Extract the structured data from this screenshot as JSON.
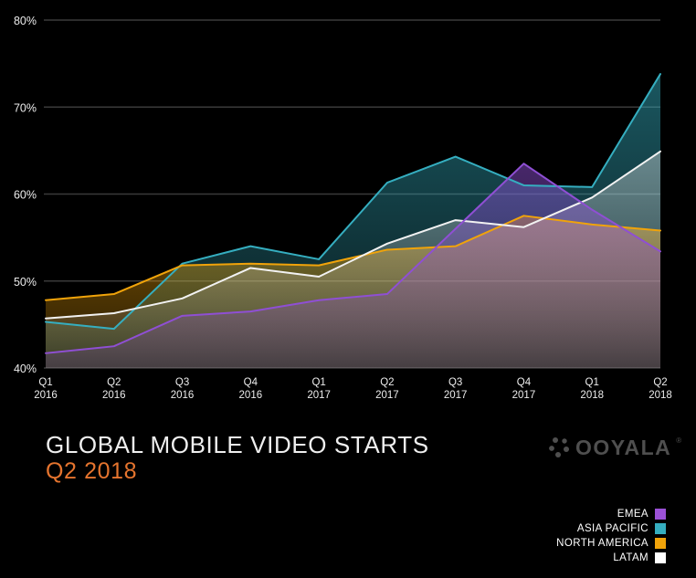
{
  "header": {
    "title": "GLOBAL MOBILE VIDEO STARTS",
    "subtitle": "Q2 2018",
    "subtitle_color": "#e5742e",
    "logo_text": "OOYALA",
    "logo_reg_mark": "®",
    "logo_color": "#4f4f4f"
  },
  "colors": {
    "background": "#000000",
    "grid": "#3a3a3a",
    "axis_text": "#ececec"
  },
  "chart_data": {
    "type": "area",
    "title": "Global Mobile Video Starts Q2 2018",
    "categories": [
      "Q1 2016",
      "Q2 2016",
      "Q3 2016",
      "Q4 2016",
      "Q1 2017",
      "Q2 2017",
      "Q3 2017",
      "Q4 2017",
      "Q1 2018",
      "Q2 2018"
    ],
    "series": [
      {
        "name": "EMEA",
        "color": "#8f4fd4",
        "values": [
          41.7,
          42.5,
          46.0,
          46.5,
          47.8,
          48.5,
          56.0,
          63.5,
          58.2,
          53.4
        ]
      },
      {
        "name": "ASIA PACIFIC",
        "color": "#35aec0",
        "values": [
          45.3,
          44.5,
          52.0,
          54.0,
          52.5,
          61.3,
          64.3,
          61.0,
          60.8,
          73.8
        ]
      },
      {
        "name": "NORTH AMERICA",
        "color": "#f0a30a",
        "values": [
          47.8,
          48.5,
          51.8,
          52.0,
          51.8,
          53.6,
          54.0,
          57.5,
          56.5,
          55.8
        ]
      },
      {
        "name": "LATAM",
        "color": "#f2f2f2",
        "values": [
          45.7,
          46.3,
          48.0,
          51.5,
          50.5,
          54.3,
          57.0,
          56.2,
          59.6,
          64.9
        ]
      }
    ],
    "draw_order": [
      1,
      2,
      3,
      0
    ],
    "xlabel": "",
    "ylabel": "",
    "ylim": [
      40,
      80
    ],
    "yticks": [
      40,
      50,
      60,
      70,
      80
    ],
    "ytick_labels": [
      "40%",
      "50%",
      "60%",
      "70%",
      "80%"
    ],
    "grid": true,
    "legend_position": "bottom-right"
  },
  "legend": {
    "items": [
      {
        "label": "EMEA",
        "color": "#9b51d6"
      },
      {
        "label": "ASIA PACIFIC",
        "color": "#35aec0"
      },
      {
        "label": "NORTH AMERICA",
        "color": "#f0a30a"
      },
      {
        "label": "LATAM",
        "color": "#ffffff"
      }
    ]
  }
}
